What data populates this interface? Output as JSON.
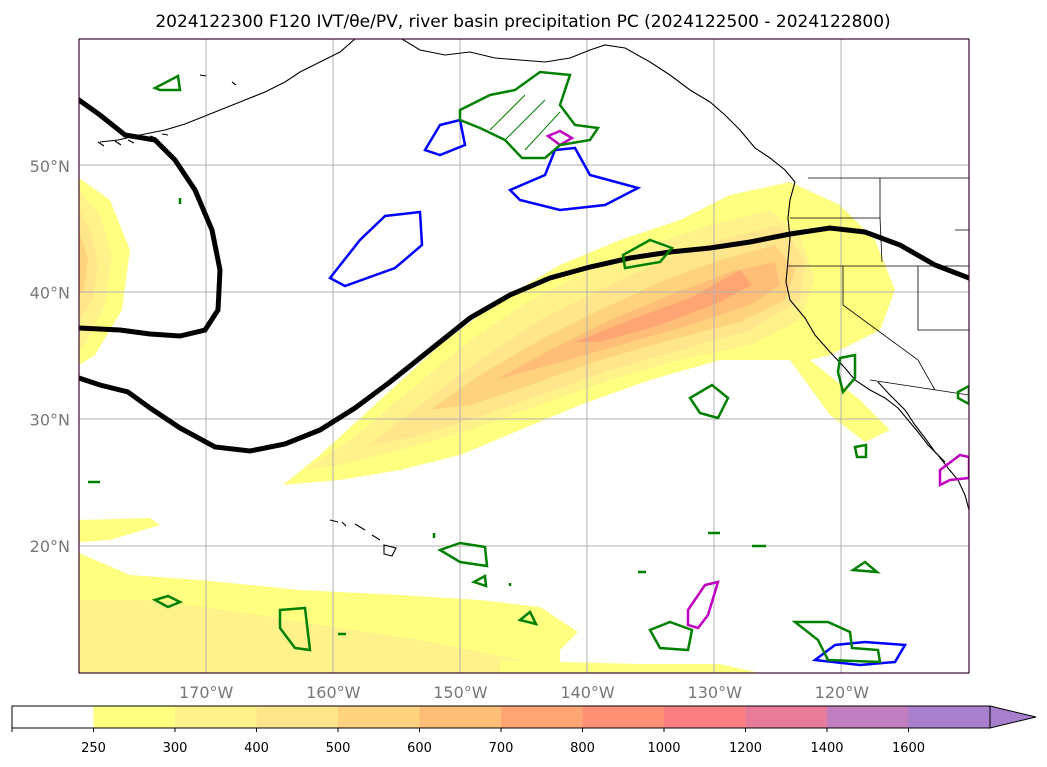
{
  "chart_data": {
    "type": "heatmap",
    "title": "2024122300 F120 IVT/θe/PV, river basin precipitation PC (2024122500 - 2024122800)",
    "map": {
      "lon_range": [
        -180,
        -110
      ],
      "lat_range": [
        10,
        60
      ],
      "lon_ticks": [
        "170°W",
        "160°W",
        "150°W",
        "140°W",
        "130°W",
        "120°W"
      ],
      "lat_ticks": [
        "20°N",
        "30°N",
        "40°N",
        "50°N"
      ],
      "grid": true
    },
    "colorbar": {
      "levels": [
        "250",
        "300",
        "400",
        "500",
        "600",
        "700",
        "800",
        "1000",
        "1200",
        "1400",
        "1600"
      ],
      "colors": [
        "#ffffff",
        "#ffff80",
        "#fff28a",
        "#ffe58c",
        "#ffd37e",
        "#ffbe78",
        "#ffa574",
        "#ff9175",
        "#fb7f80",
        "#e77b9a",
        "#c27fbf",
        "#a87fcd"
      ],
      "extend": "max"
    },
    "contours": [
      {
        "kind": "theta_e",
        "color": "#000000"
      },
      {
        "kind": "pv_positive",
        "color": "#0000ff"
      },
      {
        "kind": "pv_magenta",
        "color": "#c000c0"
      },
      {
        "kind": "precip_pc",
        "color": "#008000"
      }
    ]
  }
}
